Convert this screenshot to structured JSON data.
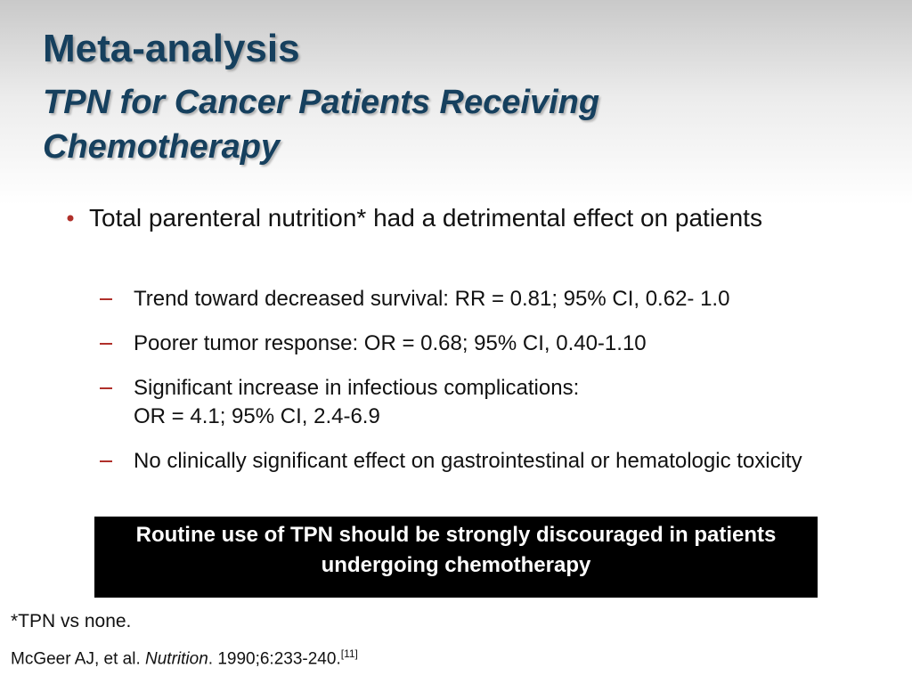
{
  "slide": {
    "title": "Meta-analysis",
    "subtitle": "TPN for Cancer Patients Receiving Chemotherapy",
    "bullets": [
      {
        "text": "Total parenteral nutrition* had a detrimental effect on patients",
        "sub_bullets": [
          [
            "Trend toward decreased survival: RR = 0.81; 95% CI, 0.62- 1.0"
          ],
          [
            "Poorer tumor response: OR = 0.68; 95% CI, 0.40-1.10"
          ],
          [
            "Significant increase in infectious complications:",
            "OR = 4.1; 95% CI, 2.4-6.9"
          ],
          [
            "No clinically significant effect on gastrointestinal or hematologic toxicity"
          ]
        ]
      }
    ],
    "callout": "Routine use of TPN should be strongly discouraged  in patients undergoing chemotherapy",
    "footnote": "*TPN vs none.",
    "reference": {
      "authors": "McGeer AJ, et al.",
      "journal": "Nutrition",
      "details": ". 1990;6:233-240.",
      "citation": "[11]"
    }
  }
}
